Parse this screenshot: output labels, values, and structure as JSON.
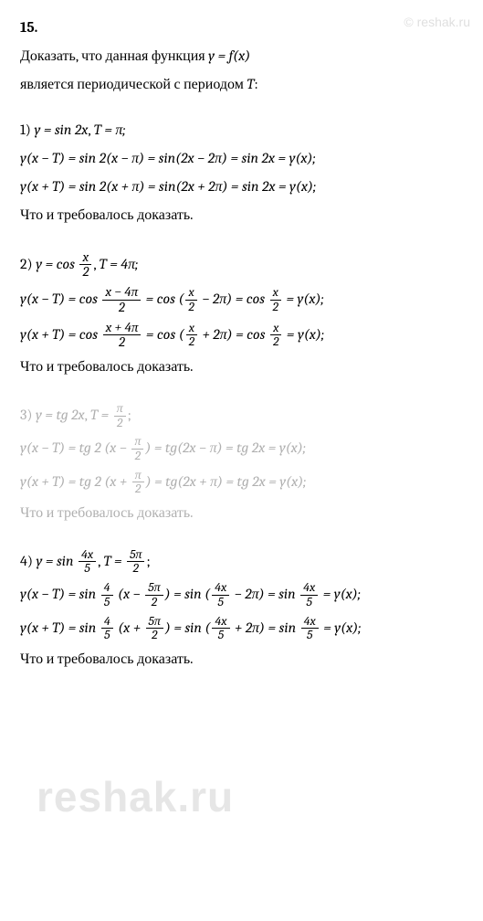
{
  "watermark_top": "© reshak.ru",
  "watermark_bottom": "reshak.ru",
  "problem_number": "15.",
  "intro_line1": "Доказать, что данная функция ",
  "intro_fn": "y = f(x)",
  "intro_line2": "является периодической с периодом ",
  "intro_T": "T",
  "colon": ":",
  "qed": "Что и требовалось доказать.",
  "p1": {
    "label": "1) ",
    "fn": "y = sin 2x",
    "sep": ",   ",
    "period": "T = π;",
    "l1a": "y(x − T) = sin 2(x − π) = sin(2x − 2π) = sin 2x = y(x);",
    "l1b": "y(x + T) = sin 2(x + π) = sin(2x + 2π) = sin 2x = y(x);"
  },
  "p2": {
    "label": "2) ",
    "fn_pre": "y = cos ",
    "fn_num": "x",
    "fn_den": "2",
    "sep": ",   ",
    "period": "T = 4π;",
    "l1_a": "y(x − T) = cos ",
    "l1_f1n": "x − 4π",
    "l1_f1d": "2",
    "l1_b": " = cos (",
    "l1_f2n": "x",
    "l1_f2d": "2",
    "l1_c": " − 2π) = cos ",
    "l1_f3n": "x",
    "l1_f3d": "2",
    "l1_d": " = y(x);",
    "l2_a": "y(x + T) = cos ",
    "l2_f1n": "x + 4π",
    "l2_f1d": "2",
    "l2_b": " = cos (",
    "l2_f2n": "x",
    "l2_f2d": "2",
    "l2_c": " + 2π) = cos ",
    "l2_f3n": "x",
    "l2_f3d": "2",
    "l2_d": " = y(x);"
  },
  "p3": {
    "label": "3) ",
    "fn": "y = tg 2x",
    "sep": ",   ",
    "period_a": "T = ",
    "period_n": "π",
    "period_d": "2",
    "period_c": ";",
    "l1_a": "y(x − T) = tg 2 (x − ",
    "l1_n": "π",
    "l1_d": "2",
    "l1_b": ") = tg(2x − π) = tg 2x = y(x);",
    "l2_a": "y(x + T) = tg 2 (x + ",
    "l2_n": "π",
    "l2_d": "2",
    "l2_b": ") = tg(2x + π) = tg 2x = y(x);"
  },
  "p4": {
    "label": "4) ",
    "fn_pre": "y = sin ",
    "fn_num": "4x",
    "fn_den": "5",
    "sep": ",   ",
    "period_a": "T = ",
    "period_n": "5π",
    "period_d": "2",
    "period_c": ";",
    "l1_a": "y(x − T) = sin ",
    "l1_f1n": "4",
    "l1_f1d": "5",
    "l1_b": " (x − ",
    "l1_f2n": "5π",
    "l1_f2d": "2",
    "l1_c": ") = sin (",
    "l1_f3n": "4x",
    "l1_f3d": "5",
    "l1_d": " − 2π) = sin ",
    "l1_f4n": "4x",
    "l1_f4d": "5",
    "l1_e": " = y(x);",
    "l2_a": "y(x + T) = sin ",
    "l2_f1n": "4",
    "l2_f1d": "5",
    "l2_b": " (x + ",
    "l2_f2n": "5π",
    "l2_f2d": "2",
    "l2_c": ") = sin (",
    "l2_f3n": "4x",
    "l2_f3d": "5",
    "l2_d": " + 2π) = sin ",
    "l2_f4n": "4x",
    "l2_f4d": "5",
    "l2_e": " = y(x);"
  }
}
